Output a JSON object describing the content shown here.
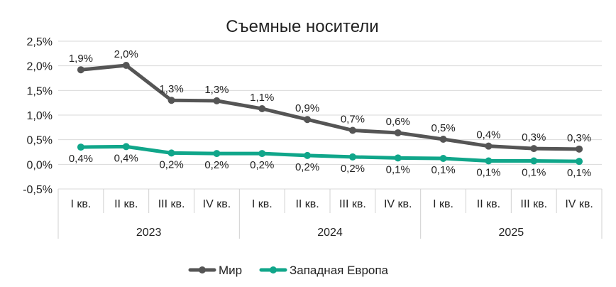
{
  "chart_data": {
    "type": "line",
    "title": "Съемные носители",
    "quarters": [
      "I кв.",
      "II кв.",
      "III кв.",
      "IV кв.",
      "I кв.",
      "II кв.",
      "III кв.",
      "IV кв.",
      "I кв.",
      "II кв.",
      "III кв.",
      "IV кв."
    ],
    "years": [
      "2023",
      "2024",
      "2025"
    ],
    "y_ticks": [
      "2,5%",
      "2,0%",
      "1,5%",
      "1,0%",
      "0,5%",
      "0,0%",
      "-0,5%"
    ],
    "ylim": [
      -0.5,
      2.5
    ],
    "grid": true,
    "legend_position": "bottom",
    "series": [
      {
        "name": "Мир",
        "color": "#555555",
        "values": [
          1.92,
          2.01,
          1.3,
          1.29,
          1.13,
          0.91,
          0.69,
          0.64,
          0.51,
          0.37,
          0.32,
          0.31
        ],
        "labels": [
          "1,9%",
          "2,0%",
          "1,3%",
          "1,3%",
          "1,1%",
          "0,9%",
          "0,7%",
          "0,6%",
          "0,5%",
          "0,4%",
          "0,3%",
          "0,3%"
        ]
      },
      {
        "name": "Западная Европа",
        "color": "#10a68a",
        "values": [
          0.35,
          0.36,
          0.23,
          0.22,
          0.22,
          0.18,
          0.15,
          0.13,
          0.12,
          0.07,
          0.07,
          0.06
        ],
        "labels": [
          "0,4%",
          "0,4%",
          "0,2%",
          "0,2%",
          "0,2%",
          "0,2%",
          "0,2%",
          "0,1%",
          "0,1%",
          "0,1%",
          "0,1%",
          "0,1%"
        ]
      }
    ]
  }
}
